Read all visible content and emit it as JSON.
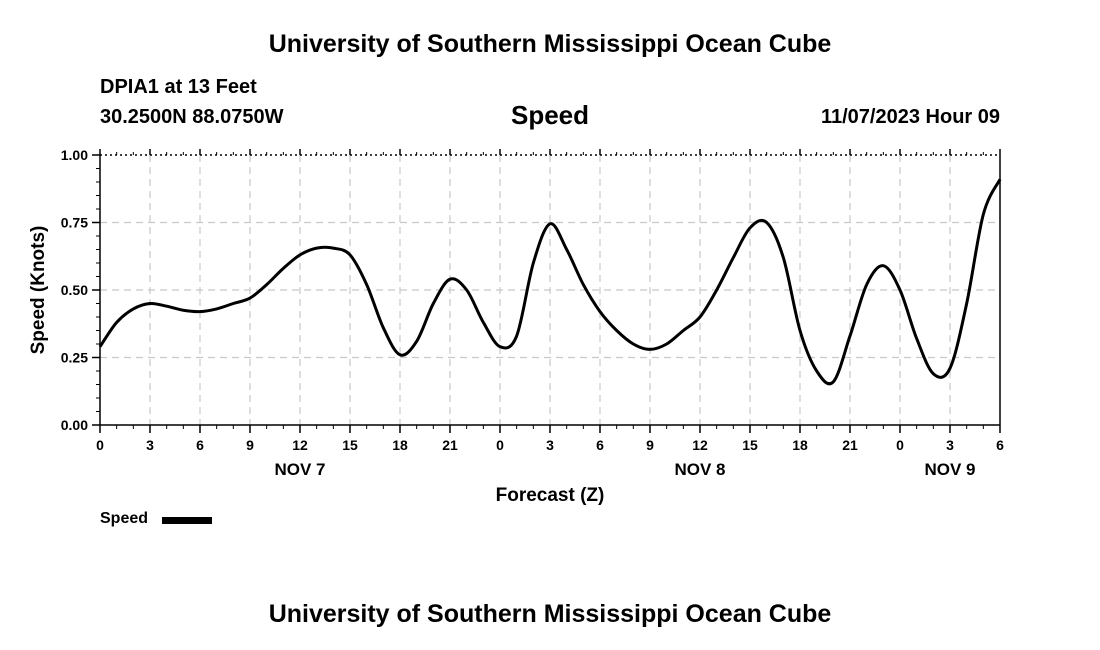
{
  "header": {
    "title": "University of Southern Mississippi Ocean Cube",
    "station": "DPIA1 at 13 Feet",
    "coords": "30.2500N  88.0750W",
    "chart_title": "Speed",
    "timestamp": "11/07/2023 Hour 09"
  },
  "footer": {
    "title": "University of Southern Mississippi Ocean Cube"
  },
  "legend": {
    "label": "Speed",
    "color": "#000000"
  },
  "chart_data": {
    "type": "line",
    "title": "Speed",
    "xlabel": "Forecast (Z)",
    "ylabel": "Speed (Knots)",
    "x_unit": "forecast hour (Z) from NOV 7 00Z",
    "xlim": [
      0,
      54
    ],
    "ylim": [
      0,
      1
    ],
    "grid": true,
    "legend_position": "bottom-left",
    "y_ticks": [
      "0.00",
      "0.25",
      "0.50",
      "0.75",
      "1.00"
    ],
    "y_tick_values": [
      0,
      0.25,
      0.5,
      0.75,
      1.0
    ],
    "x_ticks": [
      0,
      3,
      6,
      9,
      12,
      15,
      18,
      21,
      24,
      27,
      30,
      33,
      36,
      39,
      42,
      45,
      48,
      51,
      54
    ],
    "x_tick_labels": [
      "0",
      "3",
      "6",
      "9",
      "12",
      "15",
      "18",
      "21",
      "0",
      "3",
      "6",
      "9",
      "12",
      "15",
      "18",
      "21",
      "0",
      "3",
      "6"
    ],
    "day_labels": [
      {
        "label": "NOV 7",
        "x": 12
      },
      {
        "label": "NOV 8",
        "x": 36
      },
      {
        "label": "NOV 9",
        "x": 51
      }
    ],
    "series": [
      {
        "name": "Speed",
        "color": "#000000",
        "x": [
          0,
          1,
          2,
          3,
          4,
          5,
          6,
          7,
          8,
          9,
          10,
          11,
          12,
          13,
          14,
          15,
          16,
          17,
          18,
          19,
          20,
          21,
          22,
          23,
          24,
          25,
          26,
          27,
          28,
          29,
          30,
          31,
          32,
          33,
          34,
          35,
          36,
          37,
          38,
          39,
          40,
          41,
          42,
          43,
          44,
          45,
          46,
          47,
          48,
          49,
          50,
          51,
          52,
          53,
          54
        ],
        "values": [
          0.29,
          0.38,
          0.43,
          0.45,
          0.44,
          0.425,
          0.42,
          0.43,
          0.45,
          0.47,
          0.52,
          0.58,
          0.63,
          0.655,
          0.655,
          0.63,
          0.52,
          0.36,
          0.26,
          0.31,
          0.45,
          0.54,
          0.5,
          0.38,
          0.29,
          0.33,
          0.6,
          0.745,
          0.65,
          0.52,
          0.42,
          0.35,
          0.3,
          0.28,
          0.3,
          0.35,
          0.4,
          0.5,
          0.62,
          0.73,
          0.75,
          0.62,
          0.35,
          0.2,
          0.16,
          0.33,
          0.52,
          0.59,
          0.5,
          0.32,
          0.19,
          0.21,
          0.45,
          0.78,
          0.91
        ]
      }
    ]
  }
}
